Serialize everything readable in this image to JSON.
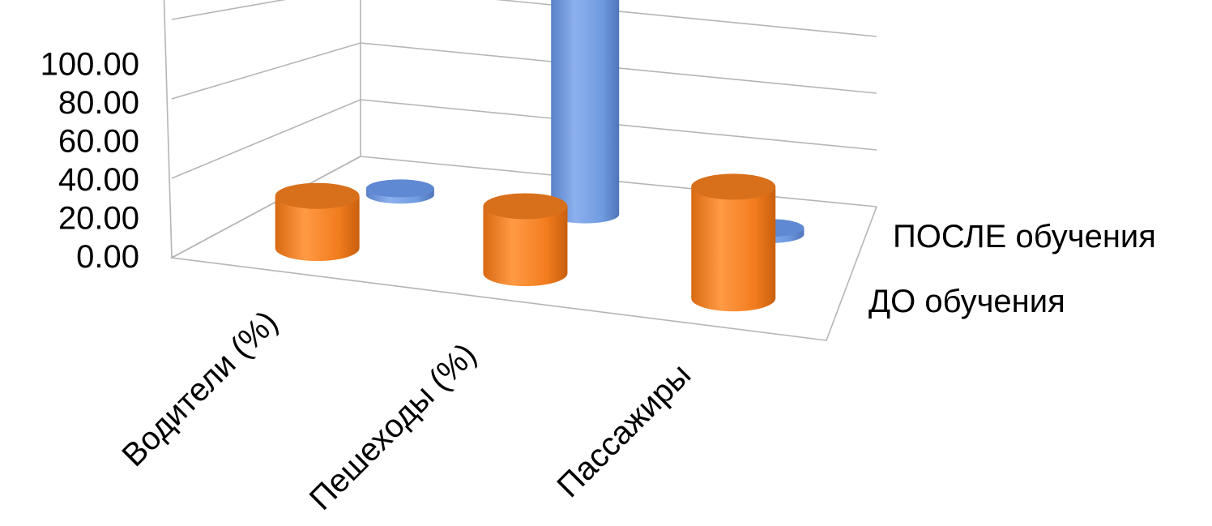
{
  "chart_data": {
    "type": "bar",
    "subtype": "3d-cylinder",
    "categories": [
      "Водители (%)",
      "Пешеходы (%)",
      "Пассажиры"
    ],
    "series": [
      {
        "name": "ДО обучения",
        "values": [
          14,
          18,
          30
        ],
        "color": "#f58025"
      },
      {
        "name": "ПОСЛЕ обучения",
        "values": [
          2,
          88,
          2
        ],
        "color": "#6f9be0"
      }
    ],
    "y_ticks": [
      "0.00",
      "20.00",
      "40.00",
      "60.00",
      "80.00",
      "100.00"
    ],
    "ylim": [
      0,
      100
    ],
    "grid": true,
    "legend": "depth axis labels (right side)"
  }
}
